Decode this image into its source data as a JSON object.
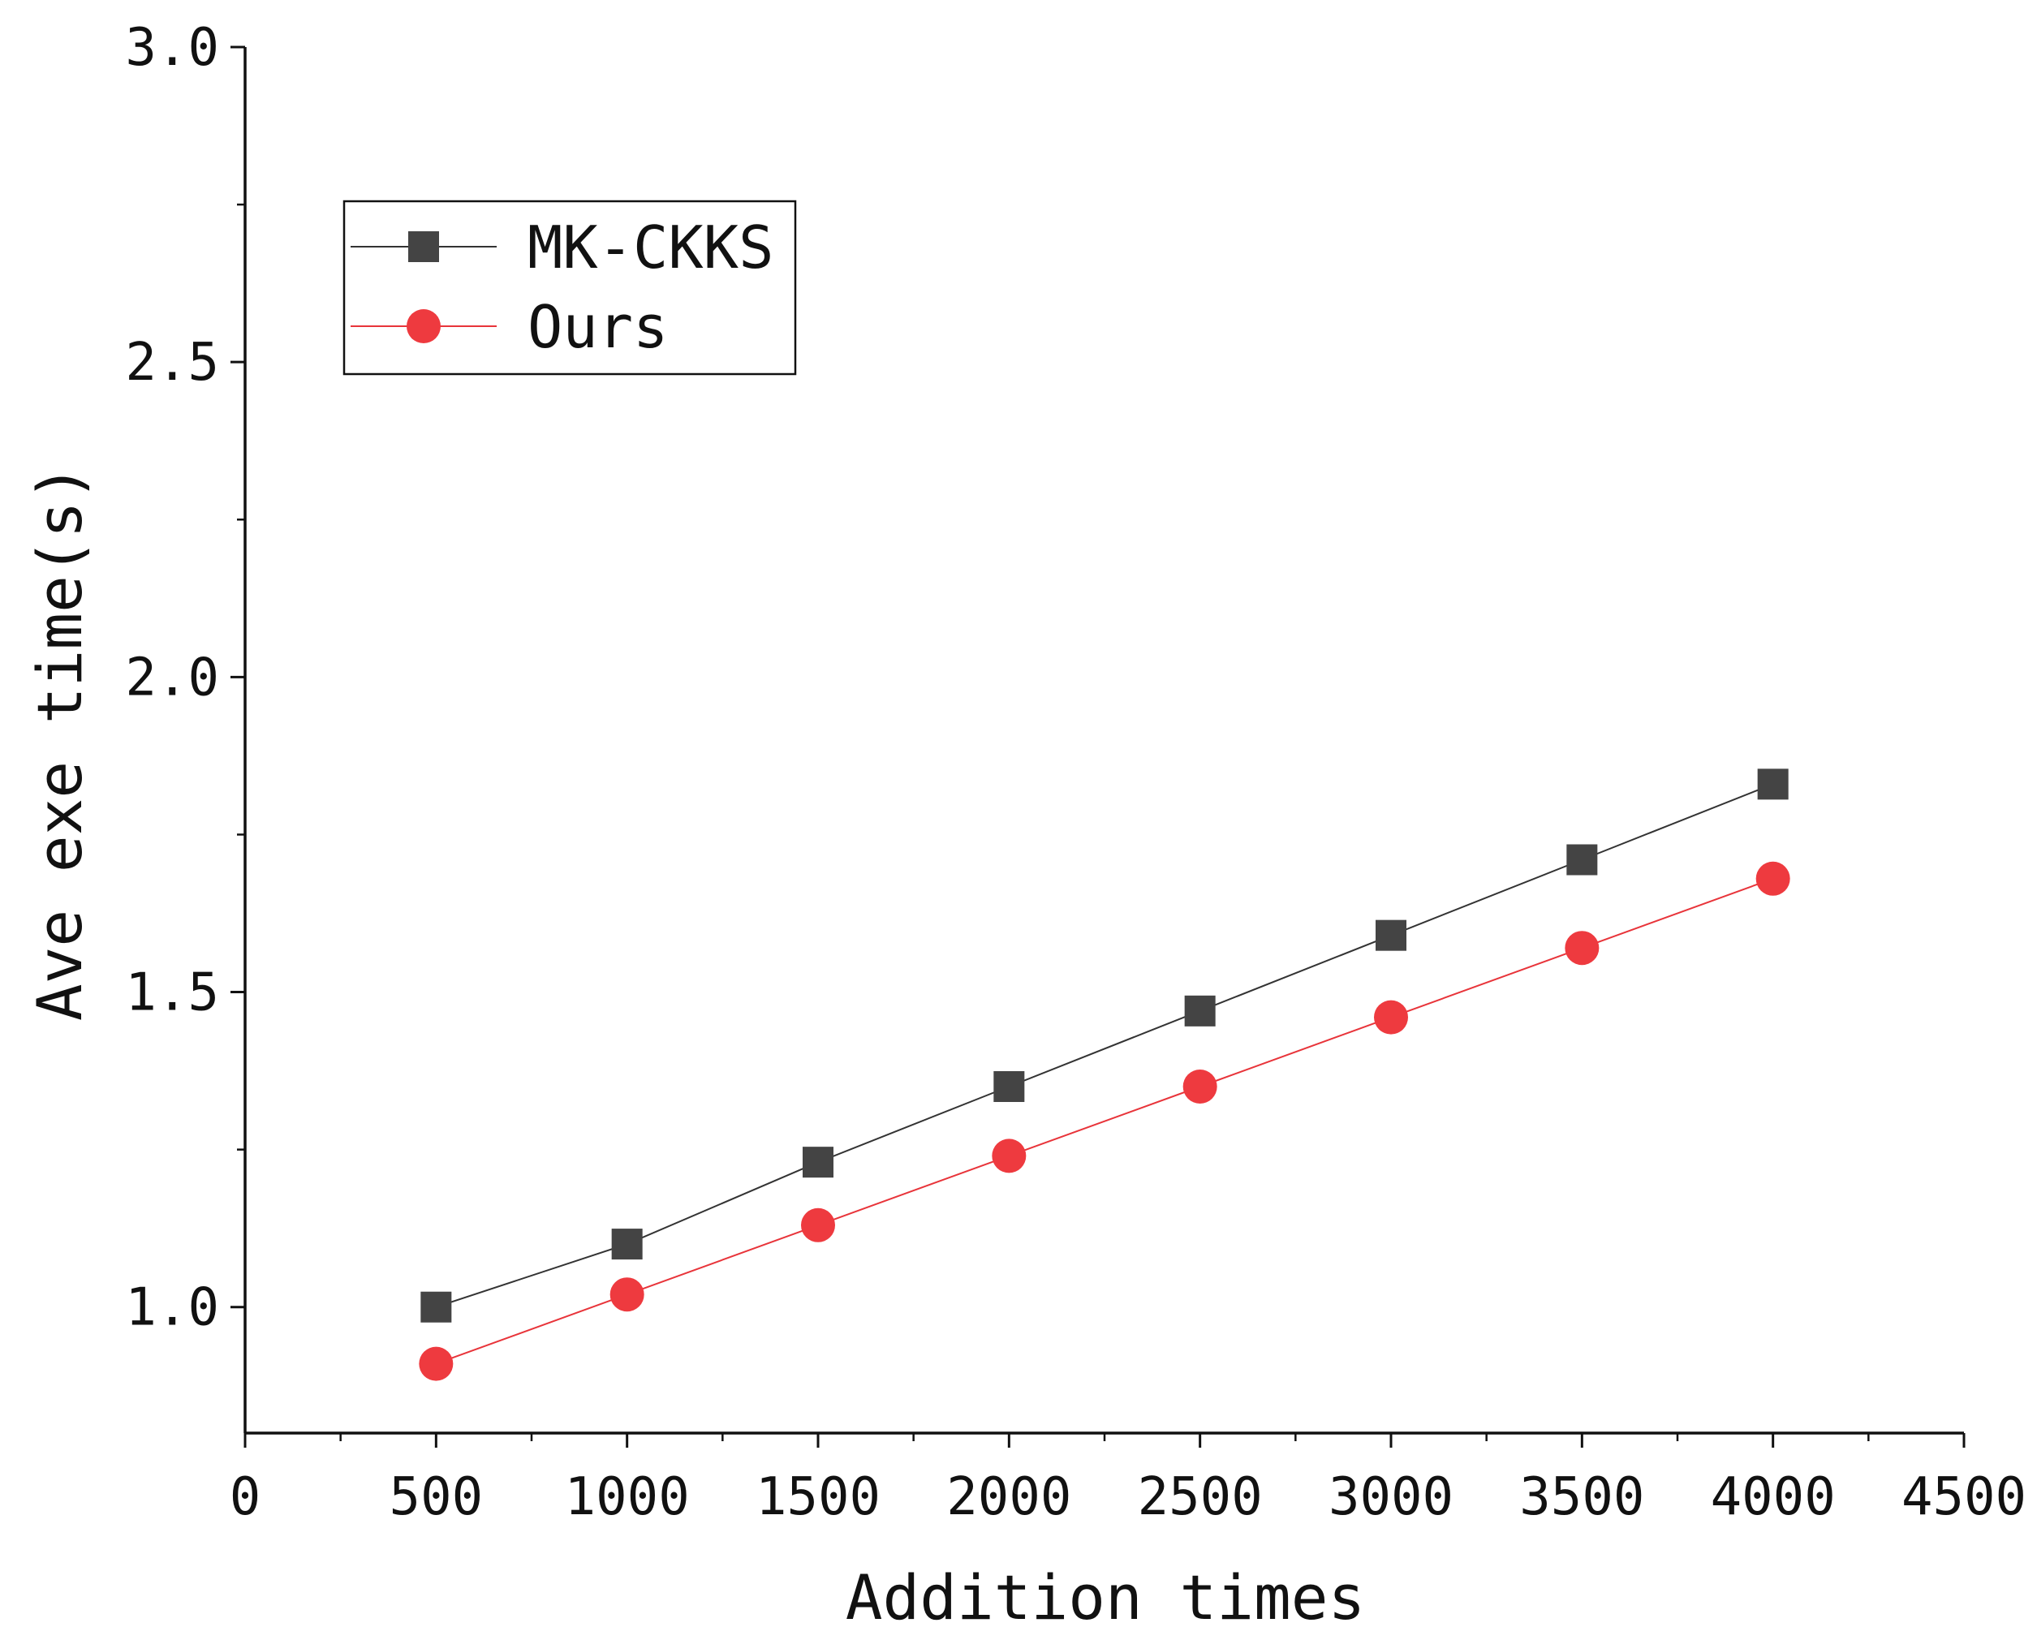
{
  "chart_data": {
    "type": "line",
    "title": "",
    "xlabel": "Addition times",
    "ylabel": "Ave exe time(s)",
    "xlim": [
      0,
      4500
    ],
    "ylim": [
      0.8,
      3.0
    ],
    "x_ticks": [
      0,
      500,
      1000,
      1500,
      2000,
      2500,
      3000,
      3500,
      4000,
      4500
    ],
    "x_tick_labels": [
      "0",
      "500",
      "1000",
      "1500",
      "2000",
      "2500",
      "3000",
      "3500",
      "4000",
      "4500"
    ],
    "y_ticks": [
      1.0,
      1.5,
      2.0,
      2.5,
      3.0
    ],
    "y_tick_labels": [
      "1.0",
      "1.5",
      "2.0",
      "2.5",
      "3.0"
    ],
    "x_minor_step": 250,
    "y_minor_step": 0.25,
    "grid": false,
    "legend_position": "top-left",
    "x": [
      500,
      1000,
      1500,
      2000,
      2500,
      3000,
      3500,
      4000
    ],
    "series": [
      {
        "name": "MK-CKKS",
        "marker": "square",
        "color": "#444444",
        "line_color": "#333333",
        "values": [
          1.0,
          1.1,
          1.23,
          1.35,
          1.47,
          1.59,
          1.71,
          1.83
        ]
      },
      {
        "name": "Ours",
        "marker": "circle",
        "color": "#ee3a3f",
        "line_color": "#e8343a",
        "values": [
          0.91,
          1.02,
          1.13,
          1.24,
          1.35,
          1.46,
          1.57,
          1.68
        ]
      }
    ]
  }
}
